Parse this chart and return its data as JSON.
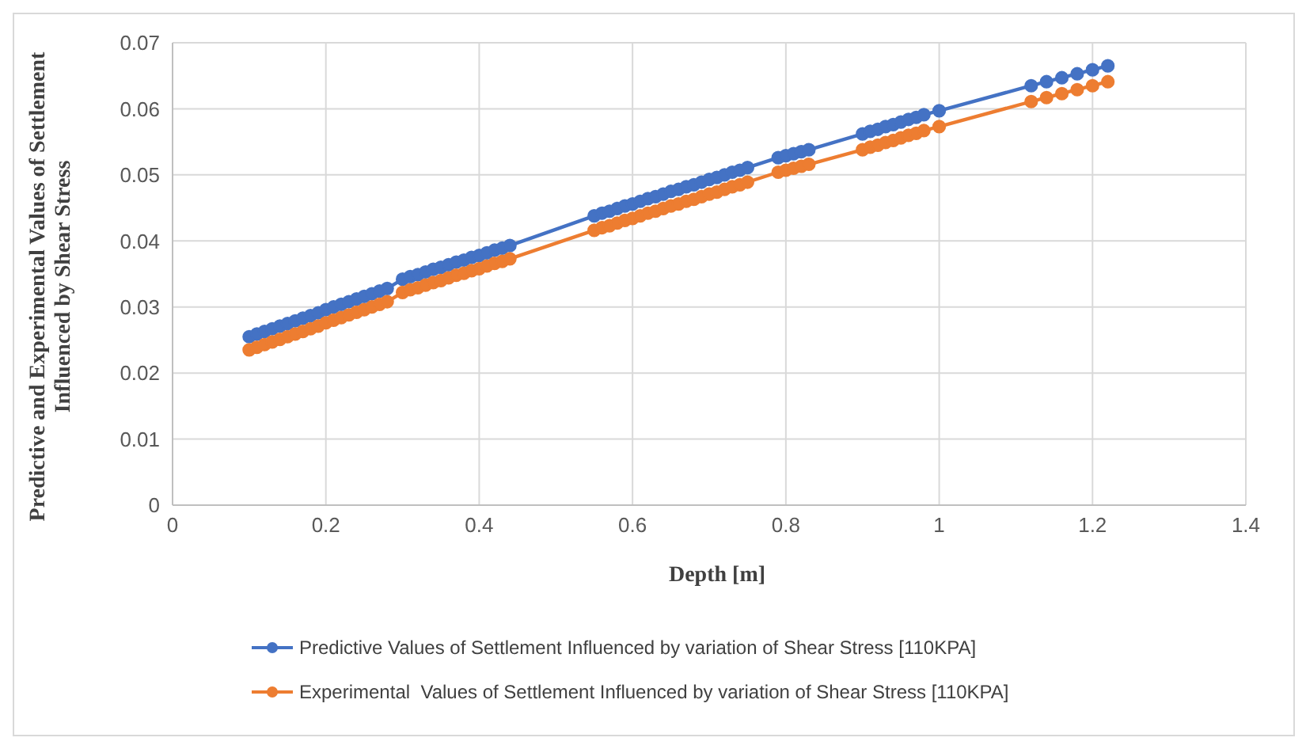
{
  "chart_data": {
    "type": "line",
    "xlabel": "Depth [m]",
    "ylabel": "Predictive and Experimental Values of Settlement Influenced by Shear Stress",
    "x": [
      0.1,
      0.11,
      0.12,
      0.13,
      0.14,
      0.15,
      0.16,
      0.17,
      0.18,
      0.19,
      0.2,
      0.21,
      0.22,
      0.23,
      0.24,
      0.25,
      0.26,
      0.27,
      0.28,
      0.3,
      0.31,
      0.32,
      0.33,
      0.34,
      0.35,
      0.36,
      0.37,
      0.38,
      0.39,
      0.4,
      0.41,
      0.42,
      0.43,
      0.44,
      0.55,
      0.56,
      0.57,
      0.58,
      0.59,
      0.6,
      0.61,
      0.62,
      0.63,
      0.64,
      0.65,
      0.66,
      0.67,
      0.68,
      0.69,
      0.7,
      0.71,
      0.72,
      0.73,
      0.74,
      0.75,
      0.79,
      0.8,
      0.81,
      0.82,
      0.83,
      0.9,
      0.91,
      0.92,
      0.93,
      0.94,
      0.95,
      0.96,
      0.97,
      0.98,
      1.0,
      1.12,
      1.14,
      1.16,
      1.18,
      1.2,
      1.22
    ],
    "series": [
      {
        "name": "Predictive Values of Settlement Influenced by variation of Shear Stress [110KPA]",
        "color": "#4472c4",
        "values": [
          0.0255,
          0.0259,
          0.0263,
          0.0267,
          0.0271,
          0.0275,
          0.0279,
          0.0283,
          0.0287,
          0.0291,
          0.0296,
          0.03,
          0.0304,
          0.0308,
          0.0312,
          0.0316,
          0.032,
          0.0324,
          0.0328,
          0.0342,
          0.0346,
          0.0349,
          0.0353,
          0.0357,
          0.036,
          0.0364,
          0.0368,
          0.0371,
          0.0375,
          0.0378,
          0.0382,
          0.0386,
          0.0389,
          0.0393,
          0.0438,
          0.0442,
          0.0445,
          0.0449,
          0.0453,
          0.0456,
          0.046,
          0.0464,
          0.0467,
          0.0471,
          0.0475,
          0.0478,
          0.0482,
          0.0485,
          0.0489,
          0.0493,
          0.0496,
          0.05,
          0.0504,
          0.0507,
          0.0511,
          0.0526,
          0.0529,
          0.0532,
          0.0535,
          0.0538,
          0.0562,
          0.0566,
          0.0569,
          0.0573,
          0.0576,
          0.058,
          0.0584,
          0.0587,
          0.0591,
          0.0597,
          0.0635,
          0.0641,
          0.0647,
          0.0653,
          0.0659,
          0.0665
        ]
      },
      {
        "name": "Experimental  Values of Settlement Influenced by variation of Shear Stress [110KPA]",
        "color": "#ed7d31",
        "values": [
          0.0235,
          0.0239,
          0.0243,
          0.0247,
          0.0251,
          0.0255,
          0.0259,
          0.0263,
          0.0267,
          0.0271,
          0.0276,
          0.028,
          0.0284,
          0.0288,
          0.0292,
          0.0296,
          0.03,
          0.0304,
          0.0308,
          0.0322,
          0.0326,
          0.0329,
          0.0333,
          0.0337,
          0.034,
          0.0344,
          0.0348,
          0.0351,
          0.0355,
          0.0358,
          0.0362,
          0.0366,
          0.0369,
          0.0373,
          0.0416,
          0.042,
          0.0423,
          0.0427,
          0.0431,
          0.0434,
          0.0438,
          0.0442,
          0.0445,
          0.0449,
          0.0453,
          0.0456,
          0.046,
          0.0463,
          0.0467,
          0.0471,
          0.0474,
          0.0478,
          0.0482,
          0.0485,
          0.0489,
          0.0504,
          0.0507,
          0.051,
          0.0513,
          0.0516,
          0.0538,
          0.0542,
          0.0545,
          0.0549,
          0.0552,
          0.0556,
          0.056,
          0.0563,
          0.0567,
          0.0573,
          0.0611,
          0.0617,
          0.0623,
          0.0629,
          0.0635,
          0.0641
        ]
      }
    ],
    "xlim": [
      0,
      1.4
    ],
    "xticks": [
      0,
      0.2,
      0.4,
      0.6,
      0.8,
      1,
      1.2,
      1.4
    ],
    "ylim": [
      0,
      0.07
    ],
    "yticks": [
      0,
      0.01,
      0.02,
      0.03,
      0.04,
      0.05,
      0.06,
      0.07
    ],
    "grid": true,
    "legend": "bottom",
    "marker": "circle",
    "line_style": "solid"
  }
}
